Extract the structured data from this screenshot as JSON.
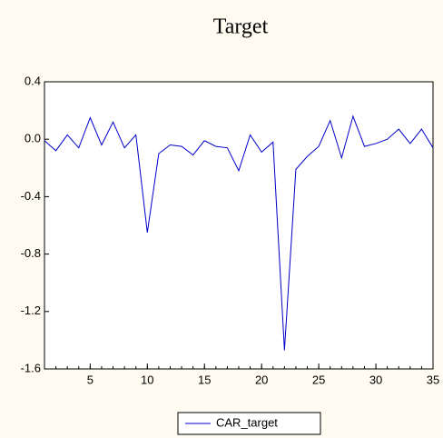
{
  "chart_data": {
    "type": "line",
    "title": "Target",
    "x": [
      1,
      2,
      3,
      4,
      5,
      6,
      7,
      8,
      9,
      10,
      11,
      12,
      13,
      14,
      15,
      16,
      17,
      18,
      19,
      20,
      21,
      22,
      23,
      24,
      25,
      26,
      27,
      28,
      29,
      30,
      31,
      32,
      33,
      34,
      35
    ],
    "series": [
      {
        "name": "CAR_target",
        "color": "#0000cc",
        "values": [
          -0.01,
          -0.08,
          0.03,
          -0.06,
          0.15,
          -0.04,
          0.12,
          -0.06,
          0.03,
          -0.65,
          -0.1,
          -0.04,
          -0.05,
          -0.11,
          -0.01,
          -0.05,
          -0.06,
          -0.22,
          0.03,
          -0.09,
          -0.02,
          -1.47,
          -0.21,
          -0.12,
          -0.05,
          0.13,
          -0.13,
          0.16,
          -0.05,
          -0.03,
          0.0,
          0.07,
          -0.03,
          0.07,
          -0.06
        ]
      }
    ],
    "xlim": [
      1,
      35
    ],
    "xticks": [
      5,
      10,
      15,
      20,
      25,
      30,
      35
    ],
    "ylim": [
      -1.6,
      0.4
    ],
    "yticks": [
      0.4,
      {
        "value": 0,
        "label": "0.0"
      },
      -0.4,
      -0.8,
      -1.2,
      -1.6
    ],
    "grid": false,
    "legend": "bottom"
  }
}
